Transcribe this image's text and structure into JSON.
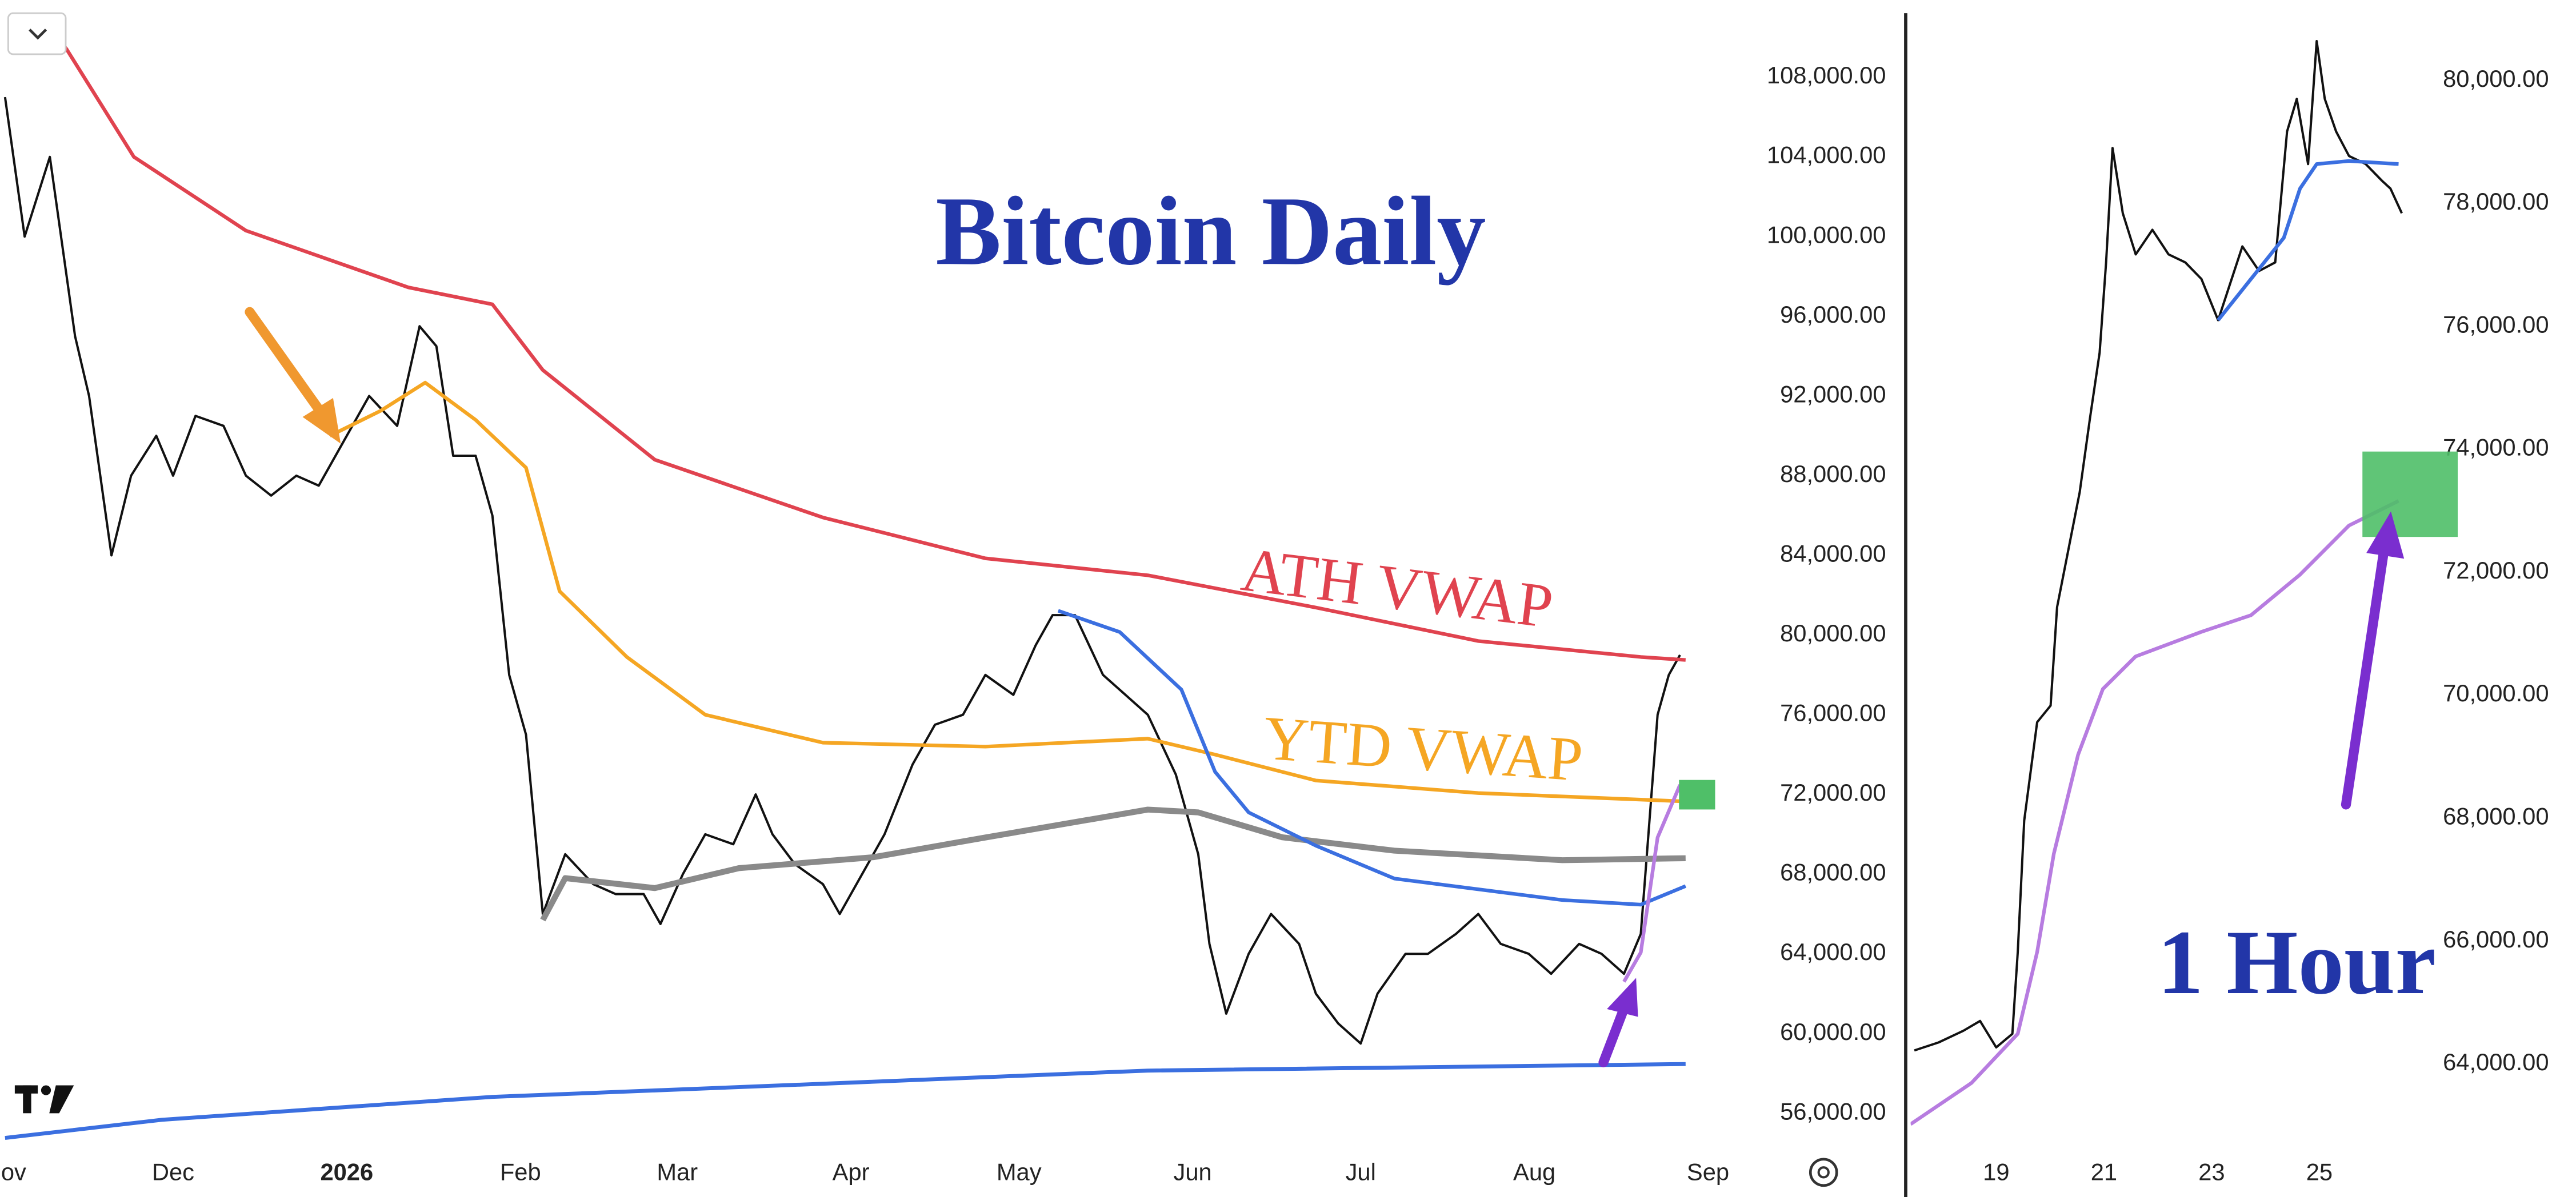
{
  "chart_data": [
    {
      "type": "line",
      "title": "Bitcoin Daily",
      "xlim": [
        -0.9,
        308.5
      ],
      "ylim": [
        54187,
        111873
      ],
      "xticks": [
        {
          "value": 0,
          "label": "Nov"
        },
        {
          "value": 30,
          "label": "Dec"
        },
        {
          "value": 61,
          "label": "2026"
        },
        {
          "value": 92,
          "label": "Feb"
        },
        {
          "value": 120,
          "label": "Mar"
        },
        {
          "value": 151,
          "label": "Apr"
        },
        {
          "value": 181,
          "label": "May"
        },
        {
          "value": 212,
          "label": "Jun"
        },
        {
          "value": 242,
          "label": "Jul"
        },
        {
          "value": 273,
          "label": "Aug"
        },
        {
          "value": 304,
          "label": "Sep"
        }
      ],
      "yticks": [
        {
          "value": 56000,
          "label": "56,000.00"
        },
        {
          "value": 60000,
          "label": "60,000.00"
        },
        {
          "value": 64000,
          "label": "64,000.00"
        },
        {
          "value": 68000,
          "label": "68,000.00"
        },
        {
          "value": 72000,
          "label": "72,000.00"
        },
        {
          "value": 76000,
          "label": "76,000.00"
        },
        {
          "value": 80000,
          "label": "80,000.00"
        },
        {
          "value": 84000,
          "label": "84,000.00"
        },
        {
          "value": 88000,
          "label": "88,000.00"
        },
        {
          "value": 92000,
          "label": "92,000.00"
        },
        {
          "value": 96000,
          "label": "96,000.00"
        },
        {
          "value": 100000,
          "label": "100,000.00"
        },
        {
          "value": 104000,
          "label": "104,000.00"
        },
        {
          "value": 108000,
          "label": "108,000.00"
        }
      ],
      "series": [
        {
          "color": "#111111",
          "width": 1.4,
          "x": [
            0,
            3.5,
            8,
            12.5,
            15,
            19,
            22.5,
            27,
            30,
            34,
            39,
            43,
            47.5,
            52,
            56,
            61,
            65,
            70,
            74,
            77,
            80,
            84,
            87,
            90,
            93,
            96,
            100,
            105,
            109,
            114,
            117,
            121,
            125,
            130,
            134,
            137,
            141,
            146,
            149,
            153,
            157,
            162,
            166,
            171,
            175,
            180,
            184,
            187,
            191,
            196,
            200,
            204,
            209,
            213,
            215,
            218,
            222,
            226,
            231,
            234,
            238,
            242,
            245,
            250,
            254,
            259,
            263,
            267,
            272,
            276,
            281,
            285,
            289,
            292,
            295,
            297,
            299
          ],
          "values": [
            107000,
            100000,
            104000,
            95000,
            92000,
            84000,
            88000,
            90000,
            88000,
            91000,
            90500,
            88000,
            87000,
            88000,
            87500,
            90000,
            92000,
            90500,
            95500,
            94500,
            89000,
            89000,
            86000,
            78000,
            75000,
            66000,
            69000,
            67500,
            67000,
            67000,
            65500,
            68000,
            70000,
            69500,
            72000,
            70000,
            68500,
            67500,
            66000,
            68000,
            70000,
            73500,
            75500,
            76000,
            78000,
            77000,
            79500,
            81000,
            81000,
            78000,
            77000,
            76000,
            73000,
            69000,
            64500,
            61000,
            64000,
            66000,
            64500,
            62000,
            60500,
            59500,
            62000,
            64000,
            64000,
            65000,
            66000,
            64500,
            64000,
            63000,
            64500,
            64000,
            63000,
            65000,
            76000,
            78000,
            79000
          ]
        },
        {
          "color": "#e0434f",
          "width": 2.2,
          "x": [
            8,
            11,
            23,
            43,
            72,
            87,
            96,
            116,
            146,
            175,
            204,
            234,
            263,
            292,
            300
          ],
          "values": [
            110500,
            109400,
            104000,
            100300,
            97450,
            96600,
            93300,
            88800,
            85900,
            83850,
            83000,
            81380,
            79700,
            78900,
            78750
          ]
        },
        {
          "color": "#f5a623",
          "width": 2.2,
          "x": [
            58,
            67,
            75,
            84,
            93,
            99,
            111,
            125,
            146,
            175,
            204,
            216,
            234,
            263,
            300
          ],
          "values": [
            90000,
            91250,
            92670,
            90800,
            88400,
            82200,
            78900,
            76000,
            74600,
            74400,
            74800,
            74000,
            72700,
            72070,
            71650
          ]
        },
        {
          "color": "#8a8a8a",
          "width": 3.6,
          "x": [
            96,
            100,
            116,
            131,
            155,
            175,
            204,
            213,
            228,
            248,
            278,
            300
          ],
          "values": [
            65700,
            67800,
            67300,
            68300,
            68850,
            69840,
            71240,
            71100,
            69850,
            69180,
            68700,
            68800
          ]
        },
        {
          "color": "#3b6fe0",
          "width": 2.2,
          "x": [
            188,
            199,
            210,
            216,
            222,
            234,
            248,
            278,
            292,
            300
          ],
          "values": [
            81220,
            80150,
            77260,
            73140,
            71100,
            69430,
            67780,
            66700,
            66470,
            67400
          ]
        },
        {
          "color": "#3b6fe0",
          "width": 2.4,
          "x": [
            0,
            28,
            87,
            146,
            204,
            300
          ],
          "values": [
            54760,
            55670,
            56820,
            57480,
            58140,
            58470
          ]
        },
        {
          "color": "#b77ce0",
          "width": 2.2,
          "x": [
            289,
            292,
            295,
            299
          ],
          "values": [
            62600,
            64070,
            69840,
            72480
          ]
        }
      ],
      "annotations": [
        {
          "text": "ATH VWAP",
          "color": "#e0434f"
        },
        {
          "text": "YTD VWAP",
          "color": "#f5a623"
        }
      ]
    },
    {
      "type": "line",
      "title": "1 Hour",
      "xlim": [
        17.32,
        27.69
      ],
      "ylim": [
        62611,
        81308
      ],
      "xticks": [
        19,
        21,
        23,
        25
      ],
      "yticks": [
        {
          "value": 64000,
          "label": "64,000.00"
        },
        {
          "value": 66000,
          "label": "66,000.00"
        },
        {
          "value": 68000,
          "label": "68,000.00"
        },
        {
          "value": 70000,
          "label": "70,000.00"
        },
        {
          "value": 72000,
          "label": "72,000.00"
        },
        {
          "value": 74000,
          "label": "74,000.00"
        },
        {
          "value": 76000,
          "label": "76,000.00"
        },
        {
          "value": 78000,
          "label": "78,000.00"
        },
        {
          "value": 80000,
          "label": "80,000.00"
        }
      ],
      "series": [
        {
          "color": "#111111",
          "width": 1.4,
          "x": [
            17.48,
            17.93,
            18.39,
            18.7,
            19,
            19.3,
            19.4,
            19.52,
            19.76,
            20.01,
            20.13,
            20.37,
            20.55,
            20.74,
            20.92,
            21.04,
            21.16,
            21.35,
            21.59,
            21.9,
            22.2,
            22.51,
            22.81,
            23.12,
            23.27,
            23.57,
            23.88,
            24.18,
            24.4,
            24.58,
            24.79,
            24.95,
            25.1,
            25.31,
            25.55,
            25.86,
            26.16,
            26.32,
            26.53
          ],
          "values": [
            64220,
            64350,
            64540,
            64700,
            64270,
            64490,
            65820,
            67960,
            69560,
            69830,
            71430,
            72500,
            73300,
            74500,
            75570,
            77040,
            78900,
            77840,
            77170,
            77570,
            77170,
            77040,
            76770,
            76100,
            76500,
            77300,
            76900,
            77040,
            79170,
            79700,
            78640,
            80640,
            79700,
            79170,
            78770,
            78640,
            78370,
            78240,
            77840
          ]
        },
        {
          "color": "#3b6fe0",
          "width": 2.2,
          "x": [
            23.12,
            23.73,
            24.34,
            24.64,
            24.95,
            25.55,
            26.47
          ],
          "values": [
            76100,
            76770,
            77440,
            78240,
            78640,
            78690,
            78640
          ]
        },
        {
          "color": "#b77ce0",
          "width": 2.2,
          "x": [
            17.41,
            18.54,
            19.4,
            19.76,
            20.07,
            20.52,
            20.98,
            21.59,
            22.81,
            23.73,
            24.64,
            25.55,
            26.47
          ],
          "values": [
            63020,
            63690,
            64490,
            65820,
            67420,
            69030,
            70100,
            70630,
            71030,
            71300,
            71960,
            72760,
            73160
          ]
        }
      ]
    }
  ]
}
